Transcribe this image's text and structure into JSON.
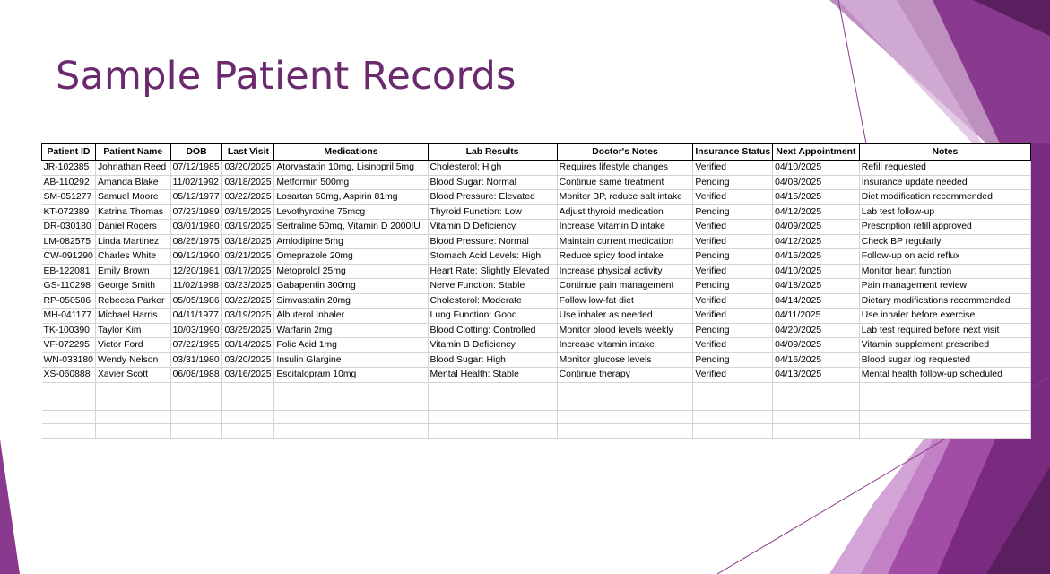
{
  "slide": {
    "title": "Sample Patient Records",
    "accent_color": "#6b2a6e",
    "decor_colors": [
      "#a34ca7",
      "#7b2b7f",
      "#5a1f5e",
      "#c88fcc",
      "#d9b3dc"
    ]
  },
  "table": {
    "headers": [
      "Patient ID",
      "Patient Name",
      "DOB",
      "Last Visit",
      "Medications",
      "Lab Results",
      "Doctor's Notes",
      "Insurance Status",
      "Next Appointment",
      "Notes"
    ],
    "rows": [
      [
        "JR-102385",
        "Johnathan Reed",
        "07/12/1985",
        "03/20/2025",
        "Atorvastatin 10mg, Lisinopril 5mg",
        "Cholesterol: High",
        "Requires lifestyle changes",
        "Verified",
        "04/10/2025",
        "Refill requested"
      ],
      [
        "AB-110292",
        "Amanda Blake",
        "11/02/1992",
        "03/18/2025",
        "Metformin 500mg",
        "Blood Sugar: Normal",
        "Continue same treatment",
        "Pending",
        "04/08/2025",
        "Insurance update needed"
      ],
      [
        "SM-051277",
        "Samuel Moore",
        "05/12/1977",
        "03/22/2025",
        "Losartan 50mg, Aspirin 81mg",
        "Blood Pressure: Elevated",
        "Monitor BP, reduce salt intake",
        "Verified",
        "04/15/2025",
        "Diet modification recommended"
      ],
      [
        "KT-072389",
        "Katrina Thomas",
        "07/23/1989",
        "03/15/2025",
        "Levothyroxine 75mcg",
        "Thyroid Function: Low",
        "Adjust thyroid medication",
        "Pending",
        "04/12/2025",
        "Lab test follow-up"
      ],
      [
        "DR-030180",
        "Daniel Rogers",
        "03/01/1980",
        "03/19/2025",
        "Sertraline 50mg, Vitamin D 2000IU",
        "Vitamin D Deficiency",
        "Increase Vitamin D intake",
        "Verified",
        "04/09/2025",
        "Prescription refill approved"
      ],
      [
        "LM-082575",
        "Linda Martinez",
        "08/25/1975",
        "03/18/2025",
        "Amlodipine 5mg",
        "Blood Pressure: Normal",
        "Maintain current medication",
        "Verified",
        "04/12/2025",
        "Check BP regularly"
      ],
      [
        "CW-091290",
        "Charles White",
        "09/12/1990",
        "03/21/2025",
        "Omeprazole 20mg",
        "Stomach Acid Levels: High",
        "Reduce spicy food intake",
        "Pending",
        "04/15/2025",
        "Follow-up on acid reflux"
      ],
      [
        "EB-122081",
        "Emily Brown",
        "12/20/1981",
        "03/17/2025",
        "Metoprolol 25mg",
        "Heart Rate: Slightly Elevated",
        "Increase physical activity",
        "Verified",
        "04/10/2025",
        "Monitor heart function"
      ],
      [
        "GS-110298",
        "George Smith",
        "11/02/1998",
        "03/23/2025",
        "Gabapentin 300mg",
        "Nerve Function: Stable",
        "Continue pain management",
        "Pending",
        "04/18/2025",
        "Pain management review"
      ],
      [
        "RP-050586",
        "Rebecca Parker",
        "05/05/1986",
        "03/22/2025",
        "Simvastatin 20mg",
        "Cholesterol: Moderate",
        "Follow low-fat diet",
        "Verified",
        "04/14/2025",
        "Dietary modifications recommended"
      ],
      [
        "MH-041177",
        "Michael Harris",
        "04/11/1977",
        "03/19/2025",
        "Albuterol Inhaler",
        "Lung Function: Good",
        "Use inhaler as needed",
        "Verified",
        "04/11/2025",
        "Use inhaler before exercise"
      ],
      [
        "TK-100390",
        "Taylor Kim",
        "10/03/1990",
        "03/25/2025",
        "Warfarin 2mg",
        "Blood Clotting: Controlled",
        "Monitor blood levels weekly",
        "Pending",
        "04/20/2025",
        "Lab test required before next visit"
      ],
      [
        "VF-072295",
        "Victor Ford",
        "07/22/1995",
        "03/14/2025",
        "Folic Acid 1mg",
        "Vitamin B Deficiency",
        "Increase vitamin intake",
        "Verified",
        "04/09/2025",
        "Vitamin supplement prescribed"
      ],
      [
        "WN-033180",
        "Wendy Nelson",
        "03/31/1980",
        "03/20/2025",
        "Insulin Glargine",
        "Blood Sugar: High",
        "Monitor glucose levels",
        "Pending",
        "04/16/2025",
        "Blood sugar log requested"
      ],
      [
        "XS-060888",
        "Xavier Scott",
        "06/08/1988",
        "03/16/2025",
        "Escitalopram 10mg",
        "Mental Health: Stable",
        "Continue therapy",
        "Verified",
        "04/13/2025",
        "Mental health follow-up scheduled"
      ]
    ]
  }
}
